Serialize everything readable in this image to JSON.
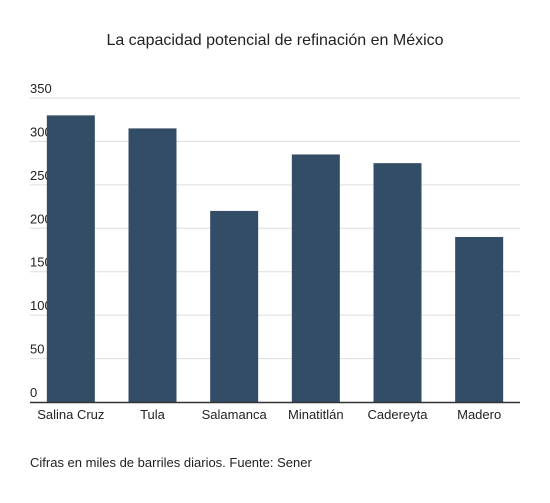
{
  "chart_data": {
    "type": "bar",
    "title": "La capacidad potencial de refinación en México",
    "categories": [
      "Salina Cruz",
      "Tula",
      "Salamanca",
      "Minatitlán",
      "Cadereyta",
      "Madero"
    ],
    "values": [
      330,
      315,
      220,
      285,
      275,
      190
    ],
    "ylim": [
      0,
      350
    ],
    "yticks": [
      0,
      50,
      100,
      150,
      200,
      250,
      300,
      350
    ],
    "xlabel": "",
    "ylabel": "",
    "grid": true,
    "legend": "none",
    "bar_color": "#344d66",
    "grid_color": "#dddddd",
    "axis_color": "#333333"
  },
  "footnote": "Cifras en miles de barriles diarios. Fuente: Sener"
}
